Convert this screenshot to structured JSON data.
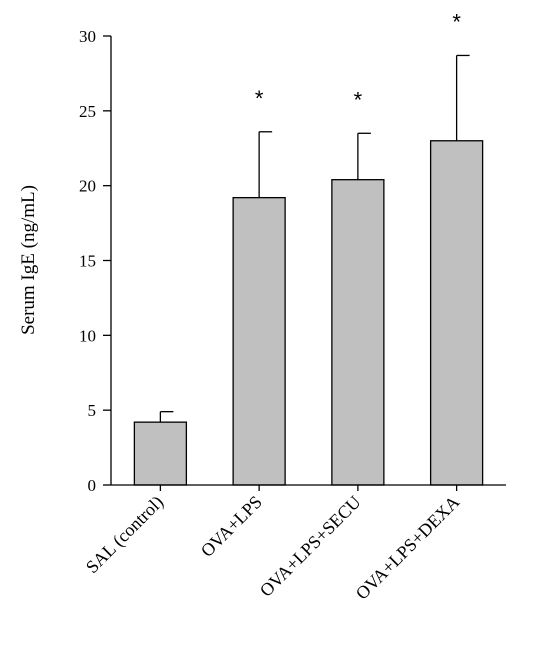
{
  "chart_data": {
    "type": "bar",
    "title": "",
    "xlabel": "",
    "ylabel": "Serum IgE (ng/mL)",
    "ylim": [
      0,
      30
    ],
    "yticks": [
      0,
      5,
      10,
      15,
      20,
      25,
      30
    ],
    "grid": false,
    "legend": "none",
    "bar_color": "#c0c0c0",
    "categories": [
      "SAL (control)",
      "OVA+LPS",
      "OVA+LPS+SECU",
      "OVA+LPS+DEXA"
    ],
    "values": [
      4.2,
      19.2,
      20.4,
      23.0
    ],
    "error_upper": [
      0.7,
      4.4,
      3.1,
      5.7
    ],
    "annotations": [
      "",
      "*",
      "*",
      "*"
    ]
  }
}
